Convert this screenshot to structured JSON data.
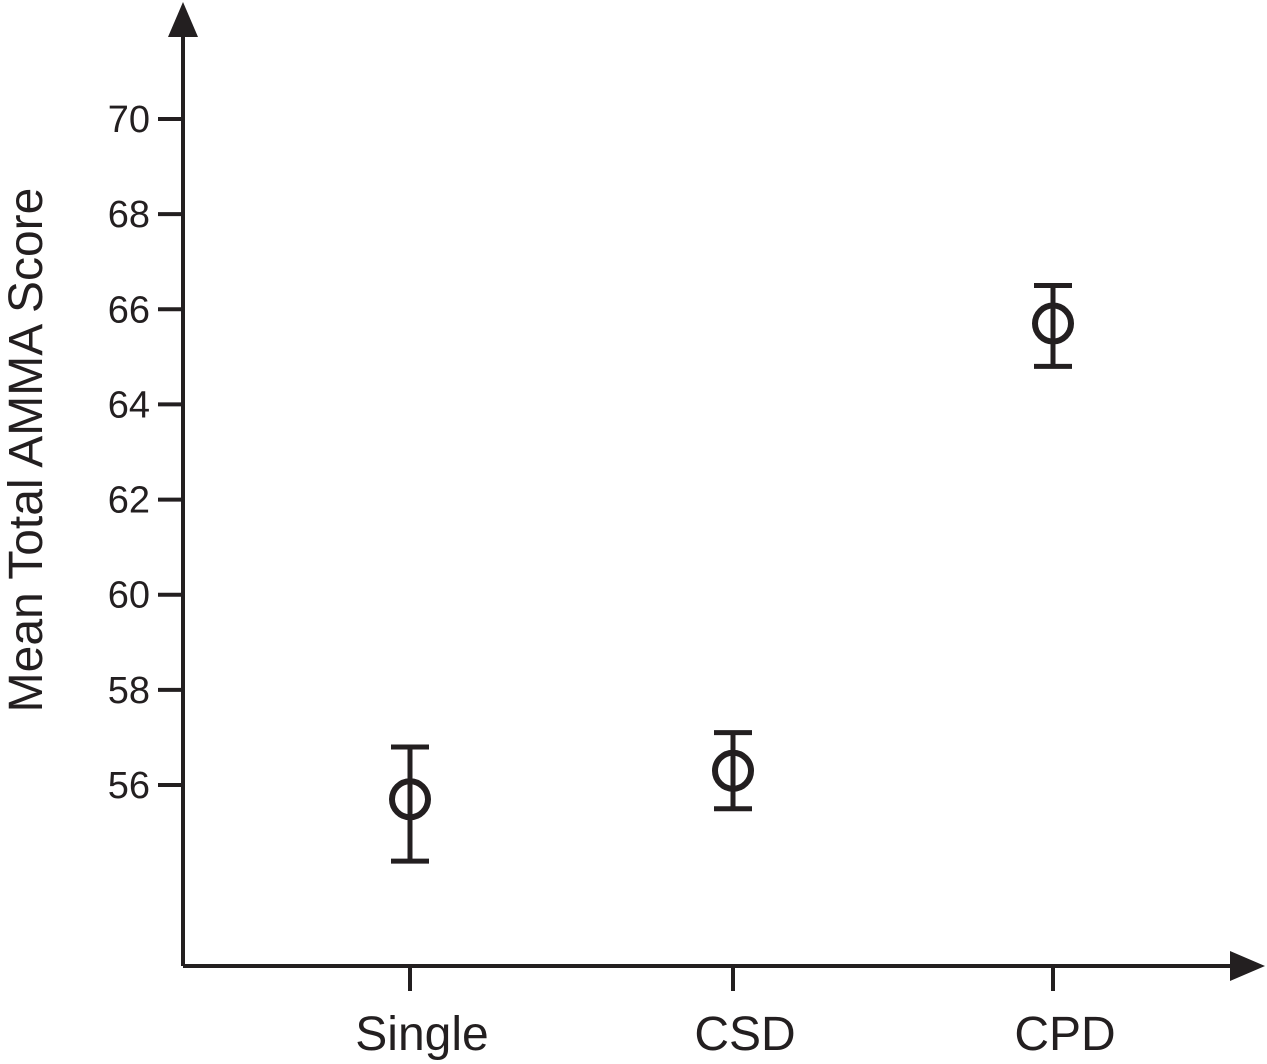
{
  "chart_data": {
    "type": "scatter",
    "title": "",
    "xlabel": "",
    "ylabel": "Mean Total AMMA Score",
    "categories": [
      "Single",
      "CSD",
      "CPD"
    ],
    "values": [
      55.7,
      56.3,
      65.7
    ],
    "error_low": [
      54.4,
      55.5,
      64.8
    ],
    "error_high": [
      56.8,
      57.1,
      66.5
    ],
    "y_ticks": [
      56,
      58,
      60,
      62,
      64,
      66,
      68,
      70
    ],
    "ylim": [
      52,
      70
    ],
    "grid": false,
    "legend": "none",
    "color": "#231f20"
  }
}
